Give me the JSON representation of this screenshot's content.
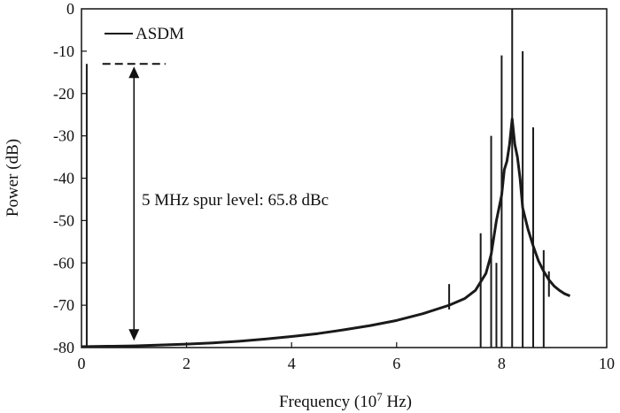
{
  "chart_data": {
    "type": "line",
    "xlabel": "Frequency (10",
    "xlabel_exp": "7",
    "xlabel_unit": " Hz)",
    "ylabel": "Power (dB)",
    "xlim": [
      0,
      10
    ],
    "ylim": [
      -80,
      0
    ],
    "xticks": [
      "0",
      "2",
      "4",
      "6",
      "8",
      "10"
    ],
    "yticks": [
      "0",
      "-10",
      "-20",
      "-30",
      "-40",
      "-50",
      "-60",
      "-70",
      "-80"
    ],
    "legend": {
      "label": "ASDM",
      "placement": "top-left"
    },
    "annotation": {
      "text": "5 MHz spur level: 65.8 dBc",
      "spur_frequency": 0.1,
      "spur_level": -13,
      "reference_level_line": -13,
      "noise_floor": -79,
      "arrow_x": 1.0,
      "dash_x": [
        0.4,
        1.6
      ]
    },
    "series": [
      {
        "name": "ASDM",
        "color": "#1a1a1a",
        "baseline": [
          [
            0.0,
            -79.8
          ],
          [
            0.5,
            -79.7
          ],
          [
            1.0,
            -79.6
          ],
          [
            1.5,
            -79.4
          ],
          [
            2.0,
            -79.2
          ],
          [
            2.5,
            -78.9
          ],
          [
            3.0,
            -78.5
          ],
          [
            3.5,
            -78.0
          ],
          [
            4.0,
            -77.4
          ],
          [
            4.5,
            -76.7
          ],
          [
            5.0,
            -75.8
          ],
          [
            5.5,
            -74.8
          ],
          [
            6.0,
            -73.6
          ],
          [
            6.5,
            -72.0
          ],
          [
            7.0,
            -70.0
          ],
          [
            7.3,
            -68.4
          ],
          [
            7.5,
            -66.5
          ],
          [
            7.7,
            -62.5
          ],
          [
            7.8,
            -58.0
          ],
          [
            7.9,
            -50.0
          ],
          [
            8.0,
            -44.0
          ],
          [
            8.05,
            -38.0
          ],
          [
            8.1,
            -36.0
          ],
          [
            8.15,
            -32.0
          ],
          [
            8.2,
            -26.0
          ],
          [
            8.25,
            -32.0
          ],
          [
            8.3,
            -35.0
          ],
          [
            8.35,
            -40.0
          ],
          [
            8.4,
            -47.0
          ],
          [
            8.5,
            -52.0
          ],
          [
            8.6,
            -56.0
          ],
          [
            8.7,
            -59.5
          ],
          [
            8.8,
            -62.0
          ],
          [
            8.9,
            -64.0
          ],
          [
            9.0,
            -65.5
          ],
          [
            9.1,
            -66.5
          ],
          [
            9.2,
            -67.3
          ],
          [
            9.3,
            -67.8
          ]
        ],
        "spikes": [
          {
            "x": 0.1,
            "peak": -13,
            "base": -80
          },
          {
            "x": 7.6,
            "peak": -53,
            "base": -80
          },
          {
            "x": 7.8,
            "peak": -30,
            "base": -80
          },
          {
            "x": 7.9,
            "peak": -60,
            "base": -80
          },
          {
            "x": 8.0,
            "peak": -11,
            "base": -80
          },
          {
            "x": 8.2,
            "peak": 0,
            "base": -80
          },
          {
            "x": 8.4,
            "peak": -10,
            "base": -80
          },
          {
            "x": 8.6,
            "peak": -28,
            "base": -80
          },
          {
            "x": 8.8,
            "peak": -57,
            "base": -80
          },
          {
            "x": 7.0,
            "peak": -65,
            "base": -71
          },
          {
            "x": 8.9,
            "peak": -62,
            "base": -68
          }
        ]
      }
    ]
  }
}
